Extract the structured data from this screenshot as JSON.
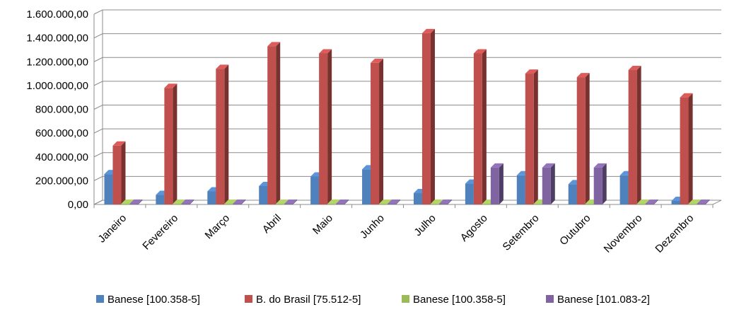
{
  "chart_data": {
    "type": "bar",
    "style": "3d-clustered-column",
    "categories": [
      "Janeiro",
      "Fevereiro",
      "Março",
      "Abril",
      "Maio",
      "Junho",
      "Julho",
      "Agosto",
      "Setembro",
      "Outubro",
      "Novembro",
      "Dezembro"
    ],
    "series": [
      {
        "name": "Banese [100.358-5]",
        "color": "#4f81bd",
        "values": [
          255000,
          80000,
          110000,
          155000,
          235000,
          295000,
          95000,
          175000,
          245000,
          170000,
          245000,
          30000
        ]
      },
      {
        "name": "B. do Brasil [75.512-5]",
        "color": "#c0504d",
        "values": [
          495000,
          980000,
          1140000,
          1330000,
          1270000,
          1190000,
          1440000,
          1270000,
          1100000,
          1070000,
          1130000,
          900000
        ]
      },
      {
        "name": "Banese [100.358-5]",
        "color": "#9bbb59",
        "values": [
          2000,
          2000,
          2000,
          2000,
          2000,
          2000,
          2000,
          2000,
          2000,
          2000,
          2000,
          2000
        ]
      },
      {
        "name": "Banese [101.083-2]",
        "color": "#8064a2",
        "values": [
          2000,
          2000,
          2000,
          2000,
          2000,
          2000,
          2000,
          310000,
          310000,
          310000,
          2000,
          2000
        ]
      }
    ],
    "y_ticks": [
      "0,00",
      "200.000,00",
      "400.000,00",
      "600.000,00",
      "800.000,00",
      "1.000.000,00",
      "1.200.000,00",
      "1.400.000,00",
      "1.600.000,00"
    ],
    "ylim": [
      0,
      1600000
    ],
    "grid": true,
    "legend": "bottom"
  }
}
